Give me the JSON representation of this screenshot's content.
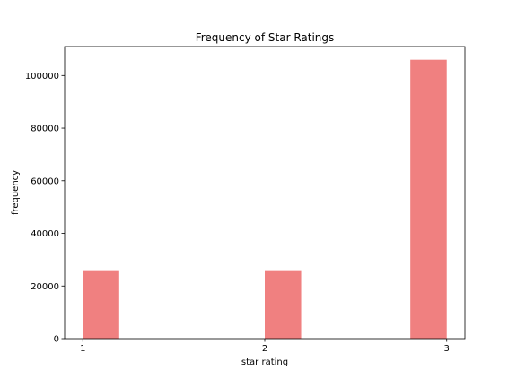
{
  "chart_data": {
    "type": "bar",
    "title": "Frequency of Star Ratings",
    "xlabel": "star rating",
    "ylabel": "frequency",
    "color": "#f08080",
    "xlim": [
      0.9,
      3.1
    ],
    "ylim": [
      0,
      111000
    ],
    "xticks": [
      1,
      2,
      3
    ],
    "yticks": [
      0,
      20000,
      40000,
      60000,
      80000,
      100000
    ],
    "bars": [
      {
        "x_start": 1.0,
        "x_end": 1.2,
        "value": 26000
      },
      {
        "x_start": 2.0,
        "x_end": 2.2,
        "value": 26000
      },
      {
        "x_start": 2.8,
        "x_end": 3.0,
        "value": 106000
      }
    ],
    "grid": false,
    "legend": "none"
  }
}
